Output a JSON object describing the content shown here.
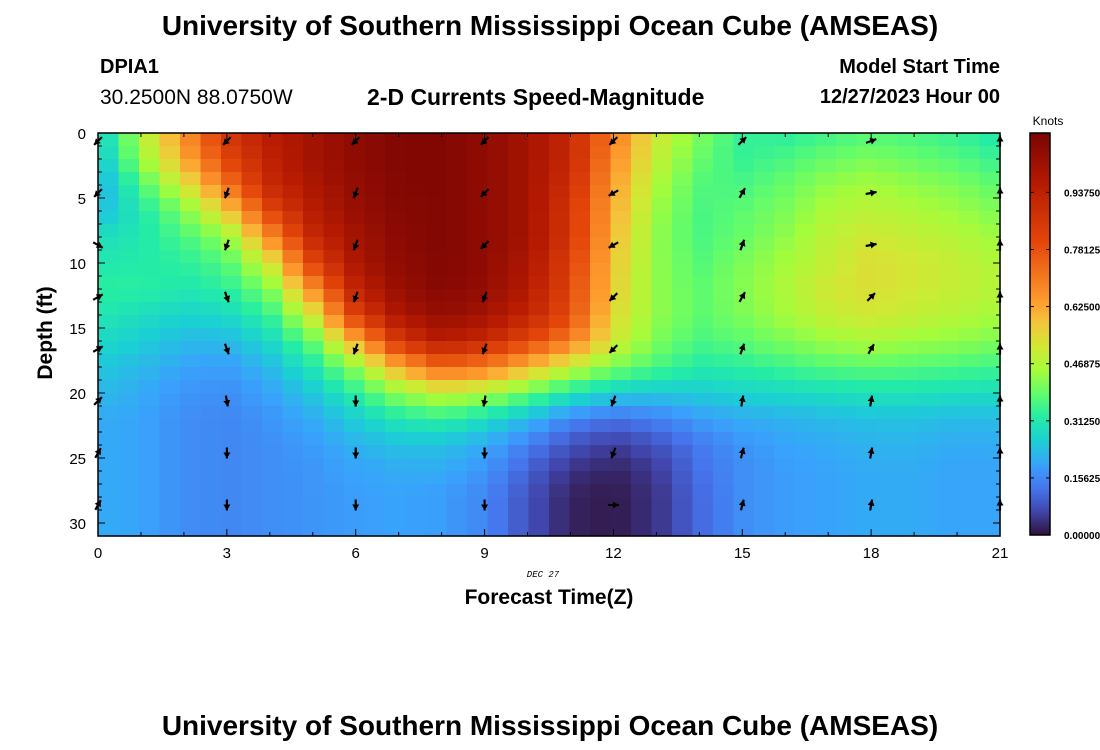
{
  "header": {
    "title": "University of Southern Mississippi Ocean Cube (AMSEAS)",
    "station": "DPIA1",
    "coordinates": "30.2500N  88.0750W",
    "subtitle": "2-D Currents Speed-Magnitude",
    "start_label": "Model Start Time",
    "start_value": "12/27/2023 Hour 00"
  },
  "footer": {
    "title": "University of Southern Mississippi Ocean Cube (AMSEAS)"
  },
  "chart_data": {
    "type": "heatmap",
    "title": "2-D Currents Speed-Magnitude",
    "xlabel": "Forecast Time(Z)",
    "ylabel": "Depth (ft)",
    "x_date_label": "DEC 27",
    "xlim": [
      0,
      21
    ],
    "ylim": [
      0,
      31
    ],
    "xticks": [
      0,
      3,
      6,
      9,
      12,
      15,
      18,
      21
    ],
    "yticks": [
      0,
      5,
      10,
      15,
      20,
      25,
      30
    ],
    "colorbar": {
      "label": "Knots",
      "range": [
        0,
        1.1
      ],
      "ticks": [
        "0.00000",
        "0.15625",
        "0.31250",
        "0.46875",
        "0.62500",
        "0.78125",
        "0.93750"
      ],
      "tick_values": [
        0,
        0.15625,
        0.3125,
        0.46875,
        0.625,
        0.78125,
        0.9375
      ]
    },
    "grid_times": [
      0,
      1,
      2,
      3,
      4,
      5,
      6,
      7,
      8,
      9,
      10,
      11,
      12,
      13,
      14,
      15,
      16,
      17,
      18,
      19,
      20,
      21
    ],
    "grid_depths": [
      0,
      2,
      4,
      6,
      8,
      10,
      12,
      14,
      16,
      18,
      20,
      22,
      24,
      26,
      28,
      30
    ],
    "speed_knots": [
      [
        0.25,
        0.45,
        0.65,
        0.85,
        0.95,
        1.0,
        1.05,
        1.08,
        1.08,
        1.05,
        1.0,
        0.9,
        0.68,
        0.5,
        0.4,
        0.33,
        0.32,
        0.34,
        0.36,
        0.35,
        0.33,
        0.3
      ],
      [
        0.23,
        0.42,
        0.6,
        0.8,
        0.93,
        1.0,
        1.05,
        1.08,
        1.08,
        1.05,
        1.0,
        0.9,
        0.65,
        0.48,
        0.38,
        0.33,
        0.35,
        0.38,
        0.4,
        0.38,
        0.36,
        0.33
      ],
      [
        0.2,
        0.35,
        0.5,
        0.7,
        0.9,
        0.98,
        1.04,
        1.08,
        1.08,
        1.05,
        1.0,
        0.88,
        0.62,
        0.45,
        0.36,
        0.35,
        0.38,
        0.42,
        0.44,
        0.42,
        0.4,
        0.37
      ],
      [
        0.22,
        0.3,
        0.4,
        0.55,
        0.8,
        0.95,
        1.03,
        1.07,
        1.08,
        1.05,
        1.0,
        0.85,
        0.6,
        0.43,
        0.35,
        0.37,
        0.4,
        0.45,
        0.47,
        0.45,
        0.43,
        0.4
      ],
      [
        0.28,
        0.3,
        0.35,
        0.42,
        0.65,
        0.9,
        1.0,
        1.06,
        1.08,
        1.05,
        1.0,
        0.85,
        0.58,
        0.42,
        0.35,
        0.38,
        0.42,
        0.47,
        0.5,
        0.48,
        0.46,
        0.43
      ],
      [
        0.3,
        0.31,
        0.32,
        0.36,
        0.5,
        0.8,
        0.98,
        1.05,
        1.08,
        1.05,
        0.98,
        0.82,
        0.56,
        0.42,
        0.36,
        0.4,
        0.44,
        0.48,
        0.52,
        0.5,
        0.48,
        0.45
      ],
      [
        0.32,
        0.32,
        0.3,
        0.32,
        0.4,
        0.65,
        0.92,
        1.03,
        1.07,
        1.04,
        0.96,
        0.8,
        0.55,
        0.42,
        0.37,
        0.41,
        0.45,
        0.5,
        0.52,
        0.5,
        0.48,
        0.46
      ],
      [
        0.3,
        0.28,
        0.26,
        0.27,
        0.33,
        0.5,
        0.82,
        0.98,
        1.04,
        1.0,
        0.92,
        0.78,
        0.53,
        0.42,
        0.37,
        0.4,
        0.44,
        0.48,
        0.5,
        0.48,
        0.46,
        0.44
      ],
      [
        0.27,
        0.25,
        0.22,
        0.22,
        0.27,
        0.38,
        0.6,
        0.85,
        0.95,
        0.9,
        0.8,
        0.68,
        0.5,
        0.4,
        0.35,
        0.37,
        0.4,
        0.43,
        0.45,
        0.43,
        0.42,
        0.4
      ],
      [
        0.24,
        0.22,
        0.19,
        0.18,
        0.22,
        0.3,
        0.42,
        0.6,
        0.72,
        0.68,
        0.58,
        0.48,
        0.4,
        0.35,
        0.31,
        0.32,
        0.34,
        0.36,
        0.37,
        0.36,
        0.35,
        0.34
      ],
      [
        0.22,
        0.2,
        0.17,
        0.16,
        0.19,
        0.24,
        0.32,
        0.42,
        0.48,
        0.45,
        0.38,
        0.3,
        0.25,
        0.24,
        0.25,
        0.26,
        0.27,
        0.28,
        0.29,
        0.29,
        0.28,
        0.28
      ],
      [
        0.2,
        0.19,
        0.16,
        0.15,
        0.17,
        0.2,
        0.25,
        0.3,
        0.32,
        0.28,
        0.22,
        0.15,
        0.12,
        0.14,
        0.18,
        0.2,
        0.21,
        0.22,
        0.23,
        0.23,
        0.22,
        0.22
      ],
      [
        0.2,
        0.19,
        0.16,
        0.15,
        0.16,
        0.18,
        0.21,
        0.23,
        0.23,
        0.2,
        0.14,
        0.08,
        0.05,
        0.08,
        0.13,
        0.17,
        0.19,
        0.2,
        0.21,
        0.21,
        0.2,
        0.2
      ],
      [
        0.2,
        0.19,
        0.16,
        0.15,
        0.16,
        0.17,
        0.19,
        0.2,
        0.2,
        0.17,
        0.1,
        0.04,
        0.02,
        0.05,
        0.12,
        0.16,
        0.18,
        0.19,
        0.2,
        0.2,
        0.19,
        0.19
      ],
      [
        0.2,
        0.19,
        0.16,
        0.15,
        0.16,
        0.17,
        0.18,
        0.19,
        0.18,
        0.15,
        0.08,
        0.02,
        0.01,
        0.04,
        0.11,
        0.16,
        0.18,
        0.19,
        0.2,
        0.2,
        0.19,
        0.19
      ],
      [
        0.2,
        0.19,
        0.16,
        0.15,
        0.16,
        0.17,
        0.18,
        0.19,
        0.18,
        0.15,
        0.08,
        0.02,
        0.01,
        0.04,
        0.11,
        0.16,
        0.18,
        0.19,
        0.2,
        0.2,
        0.19,
        0.19
      ]
    ],
    "vector_times": [
      0,
      3,
      6,
      9,
      12,
      15,
      18,
      21
    ],
    "vector_depths": [
      0,
      4,
      8,
      12,
      16,
      20,
      24,
      28
    ],
    "vector_direction_deg": [
      [
        225,
        225,
        225,
        225,
        225,
        45,
        70,
        0
      ],
      [
        225,
        200,
        200,
        225,
        240,
        30,
        80,
        0
      ],
      [
        120,
        200,
        200,
        225,
        240,
        20,
        80,
        0
      ],
      [
        60,
        160,
        200,
        200,
        225,
        30,
        45,
        0
      ],
      [
        60,
        160,
        200,
        200,
        225,
        20,
        30,
        0
      ],
      [
        45,
        170,
        180,
        190,
        200,
        10,
        10,
        0
      ],
      [
        30,
        180,
        180,
        180,
        200,
        15,
        10,
        0
      ],
      [
        30,
        180,
        180,
        180,
        90,
        15,
        10,
        0
      ]
    ]
  }
}
